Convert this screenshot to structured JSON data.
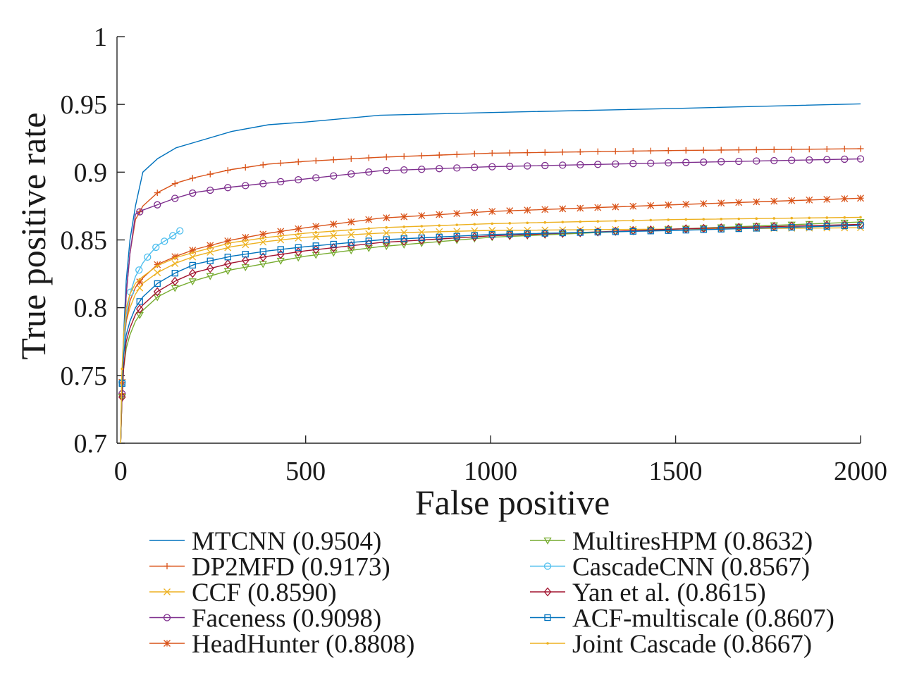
{
  "chart_data": {
    "type": "line",
    "xlabel": "False positive",
    "ylabel": "True positive rate",
    "xlim": [
      0,
      2000
    ],
    "ylim": [
      0.7,
      1.0
    ],
    "xticks": [
      "0",
      "500",
      "1000",
      "1500",
      "2000"
    ],
    "yticks": [
      "0.7",
      "0.75",
      "0.8",
      "0.85",
      "0.9",
      "0.95",
      "1"
    ],
    "grid": false,
    "legend_position": "bottom, two columns",
    "series": [
      {
        "name": "MTCNN (0.9504)",
        "color": "#0072bd",
        "marker": "none",
        "x": [
          0,
          3,
          8,
          15,
          25,
          40,
          60,
          100,
          150,
          200,
          300,
          400,
          500,
          700,
          1000,
          1500,
          2000
        ],
        "y": [
          0.7,
          0.74,
          0.78,
          0.82,
          0.85,
          0.875,
          0.9,
          0.91,
          0.918,
          0.922,
          0.93,
          0.935,
          0.937,
          0.942,
          0.944,
          0.947,
          0.9504
        ]
      },
      {
        "name": "DP2MFD (0.9173)",
        "color": "#d95319",
        "marker": "plus",
        "x": [
          0,
          3,
          8,
          15,
          25,
          40,
          60,
          100,
          150,
          200,
          300,
          400,
          500,
          700,
          1000,
          1500,
          2000
        ],
        "y": [
          0.7,
          0.73,
          0.77,
          0.81,
          0.84,
          0.865,
          0.875,
          0.885,
          0.892,
          0.896,
          0.902,
          0.906,
          0.908,
          0.911,
          0.914,
          0.916,
          0.9173
        ]
      },
      {
        "name": "CCF (0.8590)",
        "color": "#edb120",
        "marker": "x",
        "x": [
          0,
          3,
          8,
          15,
          25,
          40,
          60,
          100,
          150,
          200,
          300,
          400,
          500,
          700,
          1000,
          1500,
          2000
        ],
        "y": [
          0.7,
          0.74,
          0.77,
          0.79,
          0.8,
          0.81,
          0.818,
          0.826,
          0.833,
          0.838,
          0.845,
          0.849,
          0.852,
          0.855,
          0.857,
          0.858,
          0.859
        ]
      },
      {
        "name": "Faceness (0.9098)",
        "color": "#7e2f8e",
        "marker": "circle",
        "x": [
          0,
          3,
          8,
          15,
          25,
          40,
          60,
          100,
          150,
          200,
          300,
          400,
          500,
          700,
          1000,
          1500,
          2000
        ],
        "y": [
          0.7,
          0.73,
          0.77,
          0.81,
          0.84,
          0.869,
          0.872,
          0.876,
          0.881,
          0.885,
          0.889,
          0.892,
          0.895,
          0.901,
          0.904,
          0.907,
          0.9098
        ]
      },
      {
        "name": "HeadHunter (0.8808)",
        "color": "#d95319",
        "marker": "star",
        "x": [
          0,
          3,
          8,
          15,
          25,
          40,
          60,
          100,
          150,
          200,
          300,
          400,
          500,
          700,
          1000,
          1500,
          2000
        ],
        "y": [
          0.7,
          0.74,
          0.77,
          0.79,
          0.805,
          0.815,
          0.822,
          0.832,
          0.838,
          0.843,
          0.85,
          0.855,
          0.859,
          0.866,
          0.871,
          0.876,
          0.8808
        ]
      },
      {
        "name": "MultiresHPM (0.8632)",
        "color": "#77ac30",
        "marker": "triangle-down",
        "x": [
          0,
          3,
          8,
          15,
          25,
          40,
          60,
          100,
          150,
          200,
          300,
          400,
          500,
          700,
          1000,
          1500,
          2000
        ],
        "y": [
          0.7,
          0.73,
          0.755,
          0.77,
          0.78,
          0.79,
          0.798,
          0.808,
          0.815,
          0.82,
          0.828,
          0.833,
          0.838,
          0.845,
          0.852,
          0.858,
          0.8632
        ]
      },
      {
        "name": "CascadeCNN (0.8567)",
        "color": "#4dbeee",
        "marker": "circle",
        "x": [
          0,
          3,
          8,
          15,
          25,
          40,
          60,
          80,
          100,
          130,
          160
        ],
        "y": [
          0.7,
          0.74,
          0.77,
          0.795,
          0.81,
          0.823,
          0.833,
          0.84,
          0.846,
          0.851,
          0.8567
        ]
      },
      {
        "name": "Yan et al. (0.8615)",
        "color": "#a2142f",
        "marker": "diamond",
        "x": [
          0,
          3,
          8,
          15,
          25,
          40,
          60,
          100,
          150,
          200,
          300,
          400,
          500,
          700,
          1000,
          1500,
          2000
        ],
        "y": [
          0.7,
          0.73,
          0.755,
          0.775,
          0.785,
          0.795,
          0.802,
          0.812,
          0.82,
          0.826,
          0.833,
          0.838,
          0.842,
          0.848,
          0.853,
          0.858,
          0.8615
        ]
      },
      {
        "name": "ACF-multiscale (0.8607)",
        "color": "#0072bd",
        "marker": "square",
        "x": [
          0,
          3,
          8,
          15,
          25,
          40,
          60,
          100,
          150,
          200,
          300,
          400,
          500,
          700,
          1000,
          1500,
          2000
        ],
        "y": [
          0.7,
          0.74,
          0.765,
          0.78,
          0.79,
          0.8,
          0.808,
          0.818,
          0.826,
          0.832,
          0.838,
          0.842,
          0.845,
          0.85,
          0.854,
          0.857,
          0.8607
        ]
      },
      {
        "name": "Joint Cascade (0.8667)",
        "color": "#edb120",
        "marker": "dot",
        "x": [
          0,
          3,
          8,
          15,
          25,
          40,
          60,
          100,
          150,
          200,
          300,
          400,
          500,
          700,
          1000,
          1500,
          2000
        ],
        "y": [
          0.7,
          0.75,
          0.78,
          0.8,
          0.81,
          0.818,
          0.823,
          0.831,
          0.837,
          0.841,
          0.848,
          0.852,
          0.855,
          0.859,
          0.862,
          0.865,
          0.8667
        ]
      }
    ]
  }
}
